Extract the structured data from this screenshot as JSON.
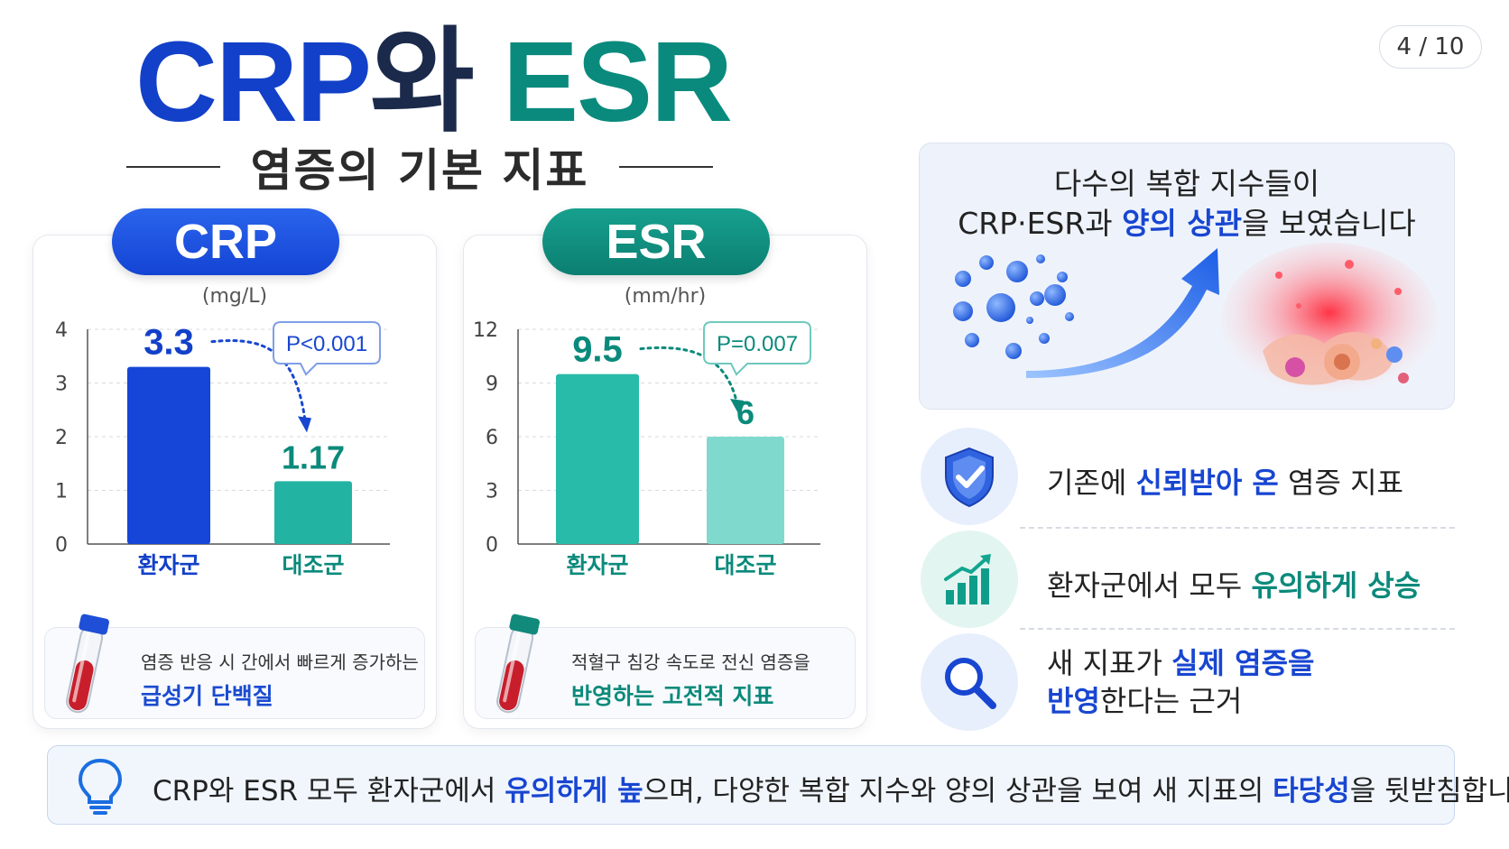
{
  "page_indicator": "4 / 10",
  "title": {
    "part1": "CRP",
    "part2": "와 ",
    "part3": "ESR"
  },
  "subtitle": "염증의 기본 지표",
  "crp_card": {
    "pill": "CRP",
    "unit": "(mg/L)",
    "p_value": "P<0.001",
    "info_line1": "염증 반응 시 간에서 빠르게 증가하는",
    "info_line2": "급성기 단백질"
  },
  "esr_card": {
    "pill": "ESR",
    "unit": "(mm/hr)",
    "p_value": "P=0.007",
    "info_line1": "적혈구 침강 속도로 전신 염증을",
    "info_line2": "반영하는 고전적 지표"
  },
  "chart_data": [
    {
      "type": "bar",
      "title": "CRP",
      "ylabel": "(mg/L)",
      "categories": [
        "환자군",
        "대조군"
      ],
      "values": [
        3.3,
        1.17
      ],
      "value_labels": [
        "3.3",
        "1.17"
      ],
      "ylim": [
        0,
        4
      ],
      "yticks": [
        0,
        1,
        2,
        3,
        4
      ],
      "annotation": "P<0.001",
      "colors": [
        "#1546d8",
        "#22b3a2"
      ],
      "grid": true
    },
    {
      "type": "bar",
      "title": "ESR",
      "ylabel": "(mm/hr)",
      "categories": [
        "환자군",
        "대조군"
      ],
      "values": [
        9.5,
        6
      ],
      "value_labels": [
        "9.5",
        "6"
      ],
      "ylim": [
        0,
        12
      ],
      "yticks": [
        0,
        3,
        6,
        9,
        12
      ],
      "annotation": "P=0.007",
      "colors": [
        "#28bba9",
        "#7fd9cd"
      ],
      "grid": true
    }
  ],
  "correlation": {
    "line1": "다수의 복합 지수들이",
    "line2_pre": "CRP·ESR과 ",
    "line2_hl": "양의 상관",
    "line2_post": "을 보였습니다"
  },
  "features": [
    {
      "icon": "shield-check-icon",
      "pre": "기존에 ",
      "hl": "신뢰받아 온",
      "post": " 염증 지표"
    },
    {
      "icon": "bar-growth-icon",
      "pre": "환자군에서 모두 ",
      "hl": "유의하게 상승",
      "post": ""
    },
    {
      "icon": "magnifier-icon",
      "pre": "새 지표가 ",
      "hl": "실제 염증을",
      "hl2": "반영",
      "post": "한다는 근거"
    }
  ],
  "summary": {
    "pre": "CRP와 ESR 모두 환자군에서 ",
    "hl1": "유의하게 높",
    "mid": "으며, 다양한 복합 지수와 양의 상관을 보여 새 지표의 ",
    "hl2": "타당성",
    "post": "을 뒷받침합니다."
  },
  "colors": {
    "blue": "#1846d1",
    "teal": "#0b8a7b",
    "red_tube": "#c81e2c"
  }
}
